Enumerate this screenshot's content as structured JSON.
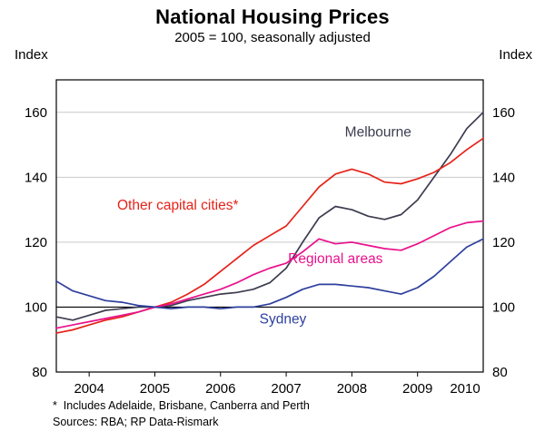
{
  "header": {
    "title": "National Housing Prices",
    "subtitle": "2005 = 100, seasonally adjusted"
  },
  "axes": {
    "left_label": "Index",
    "right_label": "Index"
  },
  "footnotes": {
    "star": "*  Includes Adelaide, Brisbane, Canberra and Perth",
    "sources": "Sources: RBA; RP Data-Rismark"
  },
  "chart_data": {
    "type": "line",
    "title": "National Housing Prices",
    "subtitle": "2005 = 100, seasonally adjusted",
    "xlabel": "",
    "ylabel": "Index",
    "xlim": [
      2003.5,
      2010
    ],
    "ylim": [
      80,
      170
    ],
    "y_ticks": [
      80,
      100,
      120,
      140,
      160
    ],
    "x_tick_years": [
      2004,
      2005,
      2006,
      2007,
      2008,
      2009,
      2010
    ],
    "grid": "horizontal",
    "reference_line": 100,
    "legend_position": "inline-labels",
    "x": [
      2003.5,
      2003.75,
      2004,
      2004.25,
      2004.5,
      2004.75,
      2005,
      2005.25,
      2005.5,
      2005.75,
      2006,
      2006.25,
      2006.5,
      2006.75,
      2007,
      2007.25,
      2007.5,
      2007.75,
      2008,
      2008.25,
      2008.5,
      2008.75,
      2009,
      2009.25,
      2009.5,
      2009.75,
      2010
    ],
    "series": [
      {
        "name": "Melbourne",
        "color": "#3c3c50",
        "label_x": 2008.4,
        "label_y": 152.5,
        "values": [
          97,
          96,
          97.5,
          99,
          99.5,
          100,
          100,
          100.5,
          102,
          103,
          104,
          104.5,
          105.5,
          107.5,
          112,
          120,
          127.5,
          131,
          130,
          128,
          127,
          128.5,
          133,
          140,
          147,
          155,
          160
        ]
      },
      {
        "name": "Other capital cities*",
        "color": "#e62219",
        "label_x": 2005.35,
        "label_y": 130,
        "values": [
          92,
          93,
          94.5,
          96,
          97,
          98.5,
          100,
          101.5,
          104,
          107,
          111,
          115,
          119,
          122,
          125,
          131,
          137,
          141,
          142.5,
          141,
          138.5,
          138,
          139.5,
          141.5,
          144.5,
          148.5,
          152
        ]
      },
      {
        "name": "Regional areas",
        "color": "#e9118c",
        "label_x": 2007.75,
        "label_y": 113.5,
        "values": [
          93.5,
          94.5,
          95.5,
          96.5,
          97.5,
          98.5,
          100,
          101,
          102.5,
          104,
          105.5,
          107.5,
          110,
          112,
          113.5,
          117,
          121,
          119.5,
          120,
          119,
          118,
          117.5,
          119.5,
          122,
          124.5,
          126,
          126.5
        ]
      },
      {
        "name": "Sydney",
        "color": "#2d3f9e",
        "label_x": 2006.95,
        "label_y": 95,
        "values": [
          108,
          105,
          103.5,
          102,
          101.5,
          100.5,
          100,
          99.5,
          100,
          100,
          99.5,
          100,
          100,
          101,
          103,
          105.5,
          107,
          107,
          106.5,
          106,
          105,
          104,
          106,
          109.5,
          114,
          118.5,
          121
        ]
      }
    ]
  }
}
